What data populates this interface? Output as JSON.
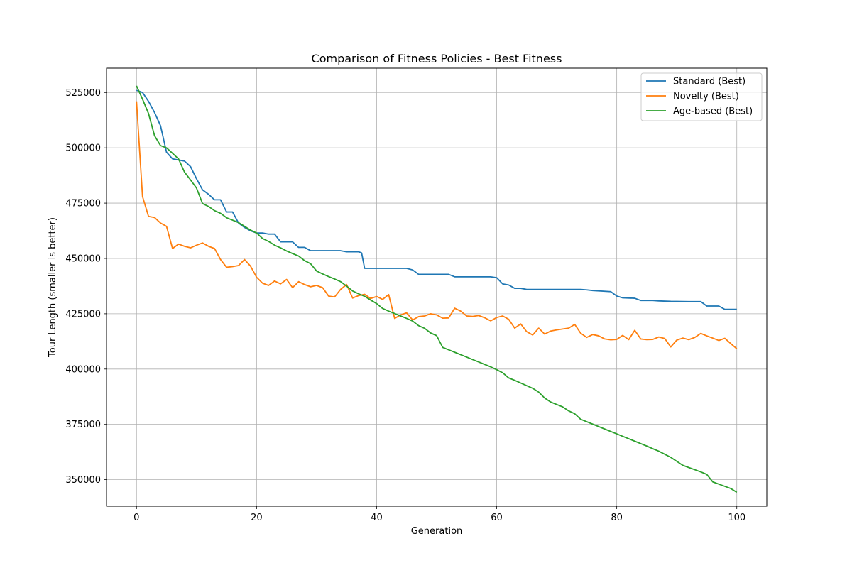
{
  "chart_data": {
    "type": "line",
    "title": "Comparison of Fitness Policies - Best Fitness",
    "xlabel": "Generation",
    "ylabel": "Tour Length (smaller is better)",
    "xlim": [
      -5,
      105
    ],
    "ylim": [
      338000,
      536000
    ],
    "xticks": [
      0,
      20,
      40,
      60,
      80,
      100
    ],
    "yticks": [
      350000,
      375000,
      400000,
      425000,
      450000,
      475000,
      500000,
      525000
    ],
    "grid": true,
    "legend_position": "top-right",
    "series": [
      {
        "name": "Standard (Best)",
        "color": "#1f77b4",
        "points": [
          [
            0,
            526000
          ],
          [
            1,
            525000
          ],
          [
            2,
            521000
          ],
          [
            3,
            516000
          ],
          [
            4,
            510000
          ],
          [
            5,
            498000
          ],
          [
            6,
            495000
          ],
          [
            7,
            494500
          ],
          [
            8,
            494000
          ],
          [
            9,
            491500
          ],
          [
            10,
            486000
          ],
          [
            11,
            481000
          ],
          [
            12,
            479000
          ],
          [
            13,
            476500
          ],
          [
            14,
            476500
          ],
          [
            15,
            471000
          ],
          [
            16,
            471000
          ],
          [
            17,
            466000
          ],
          [
            18,
            464000
          ],
          [
            19,
            462500
          ],
          [
            20,
            461500
          ],
          [
            21,
            461500
          ],
          [
            22,
            461000
          ],
          [
            23,
            461000
          ],
          [
            24,
            457500
          ],
          [
            25,
            457500
          ],
          [
            26,
            457500
          ],
          [
            27,
            455000
          ],
          [
            28,
            455000
          ],
          [
            29,
            453500
          ],
          [
            30,
            453500
          ],
          [
            34,
            453500
          ],
          [
            35,
            453000
          ],
          [
            37,
            453000
          ],
          [
            37.5,
            452500
          ],
          [
            38,
            445500
          ],
          [
            45,
            445500
          ],
          [
            46,
            444800
          ],
          [
            47,
            442800
          ],
          [
            52,
            442800
          ],
          [
            53,
            441700
          ],
          [
            59,
            441700
          ],
          [
            60,
            441300
          ],
          [
            61,
            438500
          ],
          [
            62,
            438000
          ],
          [
            63,
            436500
          ],
          [
            64,
            436500
          ],
          [
            65,
            436000
          ],
          [
            74,
            436000
          ],
          [
            75,
            435800
          ],
          [
            76,
            435500
          ],
          [
            79,
            435000
          ],
          [
            80,
            433000
          ],
          [
            81,
            432200
          ],
          [
            83,
            432000
          ],
          [
            84,
            431000
          ],
          [
            86,
            431000
          ],
          [
            87,
            430800
          ],
          [
            89,
            430600
          ],
          [
            92,
            430500
          ],
          [
            94,
            430500
          ],
          [
            95,
            428500
          ],
          [
            97,
            428500
          ],
          [
            98,
            427000
          ],
          [
            100,
            427000
          ]
        ]
      },
      {
        "name": "Novelty (Best)",
        "color": "#ff7f0e",
        "points": [
          [
            0,
            521000
          ],
          [
            1,
            478000
          ],
          [
            2,
            469000
          ],
          [
            3,
            468500
          ],
          [
            4,
            466000
          ],
          [
            5,
            464500
          ],
          [
            6,
            454500
          ],
          [
            7,
            456500
          ],
          [
            8,
            455500
          ],
          [
            9,
            454800
          ],
          [
            10,
            456000
          ],
          [
            11,
            457000
          ],
          [
            12,
            455500
          ],
          [
            13,
            454500
          ],
          [
            14,
            449500
          ],
          [
            15,
            446000
          ],
          [
            16,
            446300
          ],
          [
            17,
            446800
          ],
          [
            18,
            449500
          ],
          [
            19,
            446500
          ],
          [
            20,
            441500
          ],
          [
            21,
            438800
          ],
          [
            22,
            437800
          ],
          [
            23,
            439800
          ],
          [
            24,
            438500
          ],
          [
            25,
            440500
          ],
          [
            26,
            436800
          ],
          [
            27,
            439500
          ],
          [
            28,
            438200
          ],
          [
            29,
            437200
          ],
          [
            30,
            437800
          ],
          [
            31,
            436800
          ],
          [
            32,
            433000
          ],
          [
            33,
            432600
          ],
          [
            34,
            436000
          ],
          [
            35,
            438200
          ],
          [
            36,
            432100
          ],
          [
            37,
            433200
          ],
          [
            38,
            433800
          ],
          [
            39,
            431900
          ],
          [
            40,
            432800
          ],
          [
            41,
            431500
          ],
          [
            42,
            433700
          ],
          [
            43,
            422900
          ],
          [
            44,
            424500
          ],
          [
            45,
            425400
          ],
          [
            46,
            422200
          ],
          [
            47,
            423700
          ],
          [
            48,
            424000
          ],
          [
            49,
            425000
          ],
          [
            50,
            424500
          ],
          [
            51,
            423000
          ],
          [
            52,
            423100
          ],
          [
            53,
            427500
          ],
          [
            54,
            426200
          ],
          [
            55,
            424000
          ],
          [
            56,
            423800
          ],
          [
            57,
            424200
          ],
          [
            58,
            423200
          ],
          [
            59,
            421800
          ],
          [
            60,
            423300
          ],
          [
            61,
            424000
          ],
          [
            62,
            422500
          ],
          [
            63,
            418500
          ],
          [
            64,
            420400
          ],
          [
            65,
            416900
          ],
          [
            66,
            415400
          ],
          [
            67,
            418500
          ],
          [
            68,
            415800
          ],
          [
            69,
            417200
          ],
          [
            70,
            417700
          ],
          [
            71,
            418100
          ],
          [
            72,
            418500
          ],
          [
            73,
            420200
          ],
          [
            74,
            416200
          ],
          [
            75,
            414300
          ],
          [
            76,
            415600
          ],
          [
            77,
            415000
          ],
          [
            78,
            413600
          ],
          [
            79,
            413200
          ],
          [
            80,
            413400
          ],
          [
            81,
            415200
          ],
          [
            82,
            413300
          ],
          [
            83,
            417500
          ],
          [
            84,
            413600
          ],
          [
            85,
            413300
          ],
          [
            86,
            413400
          ],
          [
            87,
            414500
          ],
          [
            88,
            413800
          ],
          [
            89,
            410000
          ],
          [
            90,
            413100
          ],
          [
            91,
            414000
          ],
          [
            92,
            413300
          ],
          [
            93,
            414300
          ],
          [
            94,
            416100
          ],
          [
            95,
            415000
          ],
          [
            96,
            414000
          ],
          [
            97,
            412900
          ],
          [
            98,
            413900
          ],
          [
            99,
            411500
          ],
          [
            100,
            409200
          ]
        ]
      },
      {
        "name": "Age-based (Best)",
        "color": "#2ca02c",
        "points": [
          [
            0,
            528000
          ],
          [
            1,
            522000
          ],
          [
            2,
            515500
          ],
          [
            3,
            505500
          ],
          [
            4,
            501000
          ],
          [
            5,
            500000
          ],
          [
            6,
            497500
          ],
          [
            7,
            495000
          ],
          [
            8,
            489000
          ],
          [
            9,
            485500
          ],
          [
            10,
            481800
          ],
          [
            11,
            474800
          ],
          [
            12,
            473500
          ],
          [
            13,
            471600
          ],
          [
            14,
            470400
          ],
          [
            15,
            468400
          ],
          [
            16,
            467300
          ],
          [
            17,
            466200
          ],
          [
            18,
            464500
          ],
          [
            19,
            462800
          ],
          [
            20,
            461500
          ],
          [
            21,
            459000
          ],
          [
            22,
            457700
          ],
          [
            23,
            456000
          ],
          [
            24,
            454800
          ],
          [
            25,
            453400
          ],
          [
            26,
            452200
          ],
          [
            27,
            451100
          ],
          [
            28,
            449000
          ],
          [
            29,
            447600
          ],
          [
            30,
            444300
          ],
          [
            31,
            443000
          ],
          [
            32,
            441800
          ],
          [
            33,
            440700
          ],
          [
            34,
            439500
          ],
          [
            35,
            437500
          ],
          [
            36,
            435300
          ],
          [
            37,
            434000
          ],
          [
            38,
            432900
          ],
          [
            39,
            431200
          ],
          [
            40,
            429600
          ],
          [
            41,
            427400
          ],
          [
            42,
            426200
          ],
          [
            43,
            425100
          ],
          [
            44,
            424000
          ],
          [
            45,
            422900
          ],
          [
            46,
            421700
          ],
          [
            47,
            419600
          ],
          [
            48,
            418400
          ],
          [
            49,
            416300
          ],
          [
            50,
            415100
          ],
          [
            51,
            409800
          ],
          [
            52,
            408700
          ],
          [
            53,
            407600
          ],
          [
            54,
            406500
          ],
          [
            55,
            405400
          ],
          [
            56,
            404300
          ],
          [
            57,
            403200
          ],
          [
            58,
            402100
          ],
          [
            59,
            401000
          ],
          [
            60,
            399700
          ],
          [
            61,
            398300
          ],
          [
            62,
            396000
          ],
          [
            63,
            394900
          ],
          [
            64,
            393700
          ],
          [
            65,
            392500
          ],
          [
            66,
            391300
          ],
          [
            67,
            389600
          ],
          [
            68,
            386900
          ],
          [
            69,
            385100
          ],
          [
            70,
            384000
          ],
          [
            71,
            382900
          ],
          [
            72,
            381100
          ],
          [
            73,
            379800
          ],
          [
            74,
            377300
          ],
          [
            75,
            376200
          ],
          [
            76,
            375100
          ],
          [
            77,
            374000
          ],
          [
            78,
            372900
          ],
          [
            79,
            371800
          ],
          [
            80,
            370700
          ],
          [
            81,
            369600
          ],
          [
            82,
            368500
          ],
          [
            83,
            367400
          ],
          [
            84,
            366300
          ],
          [
            85,
            365200
          ],
          [
            86,
            364000
          ],
          [
            87,
            362900
          ],
          [
            88,
            361500
          ],
          [
            89,
            360100
          ],
          [
            90,
            358300
          ],
          [
            91,
            356500
          ],
          [
            92,
            355500
          ],
          [
            93,
            354500
          ],
          [
            94,
            353500
          ],
          [
            95,
            352400
          ],
          [
            96,
            349000
          ],
          [
            97,
            348000
          ],
          [
            98,
            347000
          ],
          [
            99,
            346000
          ],
          [
            100,
            344300
          ]
        ]
      }
    ]
  }
}
